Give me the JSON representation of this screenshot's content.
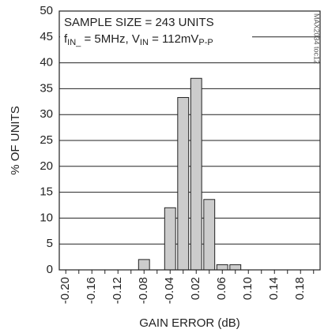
{
  "chart_data": {
    "type": "bar",
    "annotation": "SAMPLE SIZE = 243 UNITS",
    "annotation_parts": [
      "f",
      "IN_",
      " = 5MHz, V",
      "IN",
      " = 112mV",
      "P-P"
    ],
    "side_note": "MAX2034 toc12",
    "xlabel": "GAIN ERROR (dB)",
    "ylabel": "% OF UNITS",
    "categories": [
      "-0.20",
      null,
      "-0.16",
      null,
      "-0.12",
      null,
      "-0.08",
      null,
      "-0.04",
      null,
      "0.02",
      null,
      "0.06",
      null,
      "0.10",
      null,
      "0.14",
      null,
      "0.18",
      null
    ],
    "values": [
      0,
      0,
      0,
      0,
      0,
      0,
      2,
      0,
      12,
      33.3,
      37,
      13.6,
      1,
      1,
      0,
      0,
      0,
      0,
      0,
      0
    ],
    "color": "#cccccc",
    "ylim": [
      0,
      50
    ],
    "yticks": [
      0,
      5,
      10,
      15,
      20,
      25,
      30,
      35,
      40,
      45,
      50
    ],
    "grid": true
  }
}
